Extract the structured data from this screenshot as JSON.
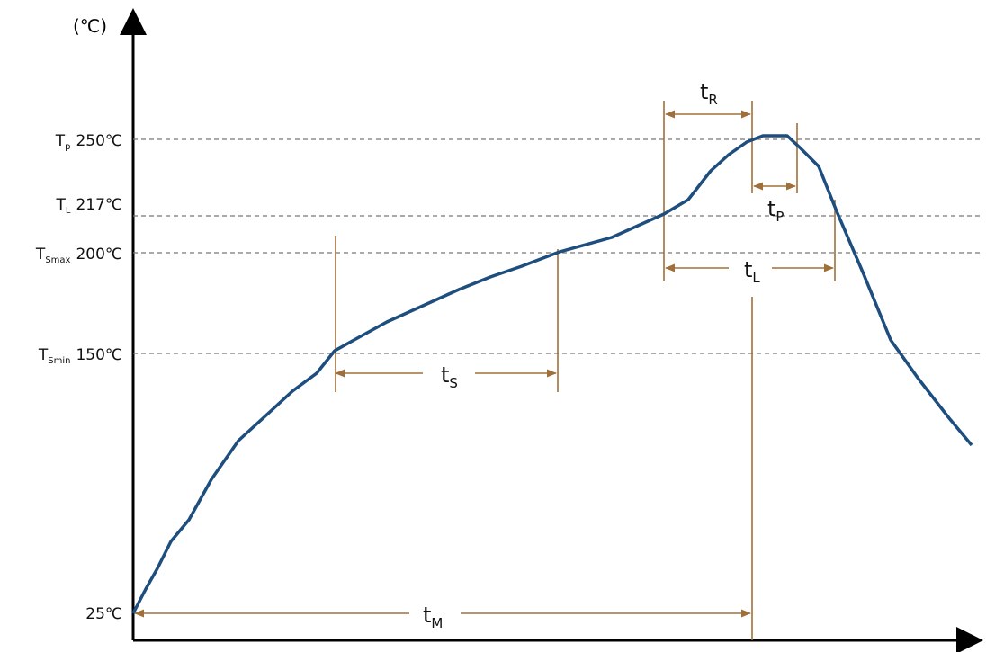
{
  "axis_unit": "(℃)",
  "levels": [
    {
      "symbol": "T",
      "sub": "p",
      "value": "250℃"
    },
    {
      "symbol": "T",
      "sub": "L",
      "value": "217℃"
    },
    {
      "symbol": "T",
      "sub": "Smax",
      "value": "200℃"
    },
    {
      "symbol": "T",
      "sub": "Smin",
      "value": "150℃"
    },
    {
      "value": "25℃"
    }
  ],
  "intervals": [
    {
      "symbol": "t",
      "sub": "R"
    },
    {
      "symbol": "t",
      "sub": "P"
    },
    {
      "symbol": "t",
      "sub": "L"
    },
    {
      "symbol": "t",
      "sub": "S"
    },
    {
      "symbol": "t",
      "sub": "M"
    }
  ]
}
